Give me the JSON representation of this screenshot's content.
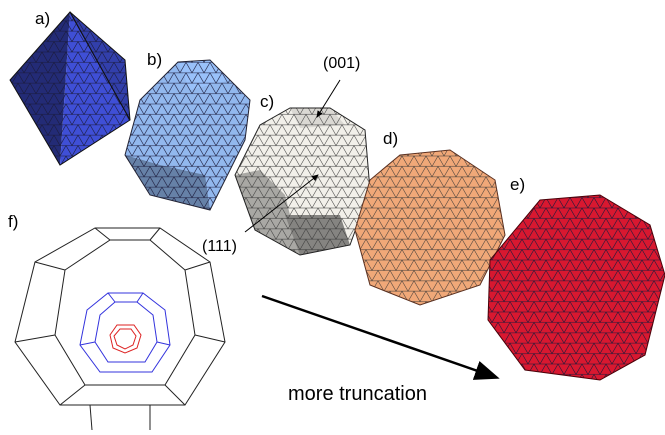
{
  "panels": [
    {
      "label": "a)",
      "color": "#3f4fd6"
    },
    {
      "label": "b)",
      "color": "#92b8ee"
    },
    {
      "label": "c)",
      "color": "#f2f0ea"
    },
    {
      "label": "d)",
      "color": "#f0a878"
    },
    {
      "label": "e)",
      "color": "#d81830"
    }
  ],
  "schematic": {
    "label": "f)",
    "outer_color": "#222222",
    "middle_color": "#3333dd",
    "inner_color": "#dd2222"
  },
  "annotations": {
    "face_001": "(001)",
    "face_111": "(111)"
  },
  "caption": "more truncation"
}
